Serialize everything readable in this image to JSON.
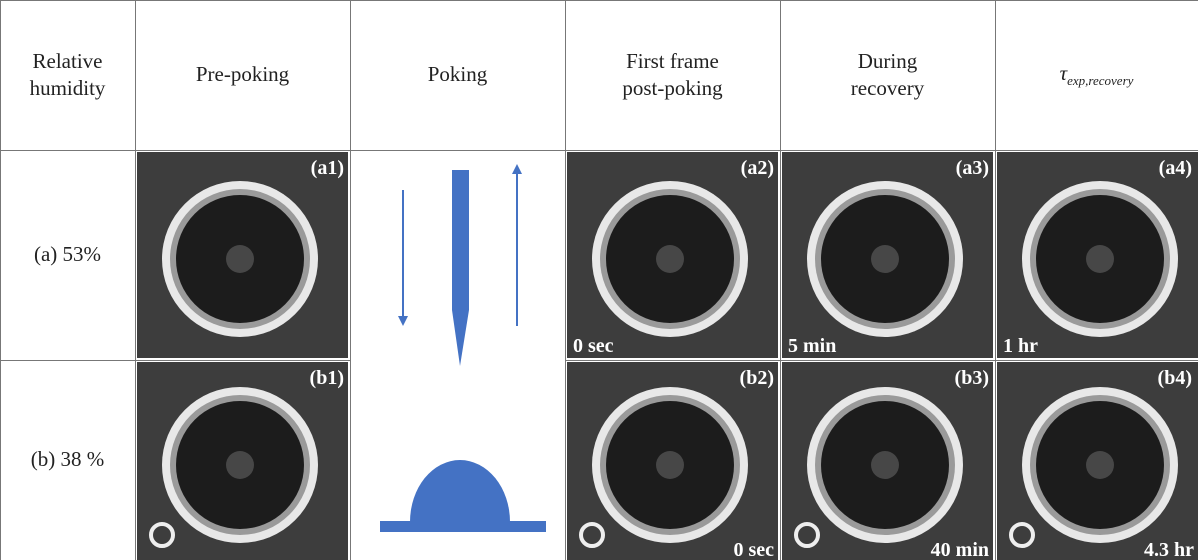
{
  "header": {
    "humidity": "Relative humidity",
    "pre": "Pre-poking",
    "poking": "Poking",
    "first": "First frame post-poking",
    "during": "During recovery",
    "tau_symbol": "τ",
    "tau_subscript": "exp,recovery"
  },
  "rows": [
    {
      "label": "(a) 53%",
      "tags": [
        "(a1)",
        "(a2)",
        "(a3)",
        "(a4)"
      ],
      "times": [
        "0 sec",
        "5 min",
        "1 hr"
      ]
    },
    {
      "label": "(b) 38 %",
      "tags": [
        "(b1)",
        "(b2)",
        "(b3)",
        "(b4)"
      ],
      "times": [
        "0 sec",
        "40 min",
        "4.3 hr"
      ]
    }
  ]
}
